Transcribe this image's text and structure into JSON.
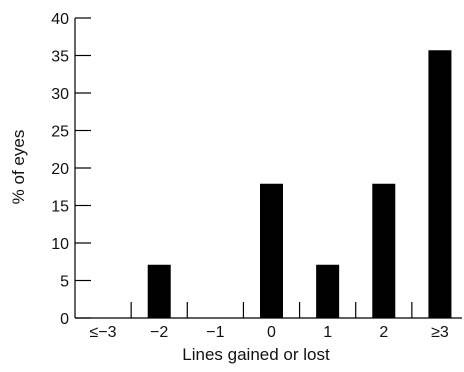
{
  "chart_data": {
    "type": "bar",
    "categories": [
      "≤−3",
      "−2",
      "−1",
      "0",
      "1",
      "2",
      "≥3"
    ],
    "values": [
      0,
      7.1,
      0,
      17.9,
      7.1,
      17.9,
      35.7
    ],
    "xlabel": "Lines gained or lost",
    "ylabel": "% of eyes",
    "ylim": [
      0,
      40
    ],
    "yticks": [
      0,
      5,
      10,
      15,
      20,
      25,
      30,
      35,
      40
    ],
    "grid": false,
    "bar_color": "#000000"
  }
}
